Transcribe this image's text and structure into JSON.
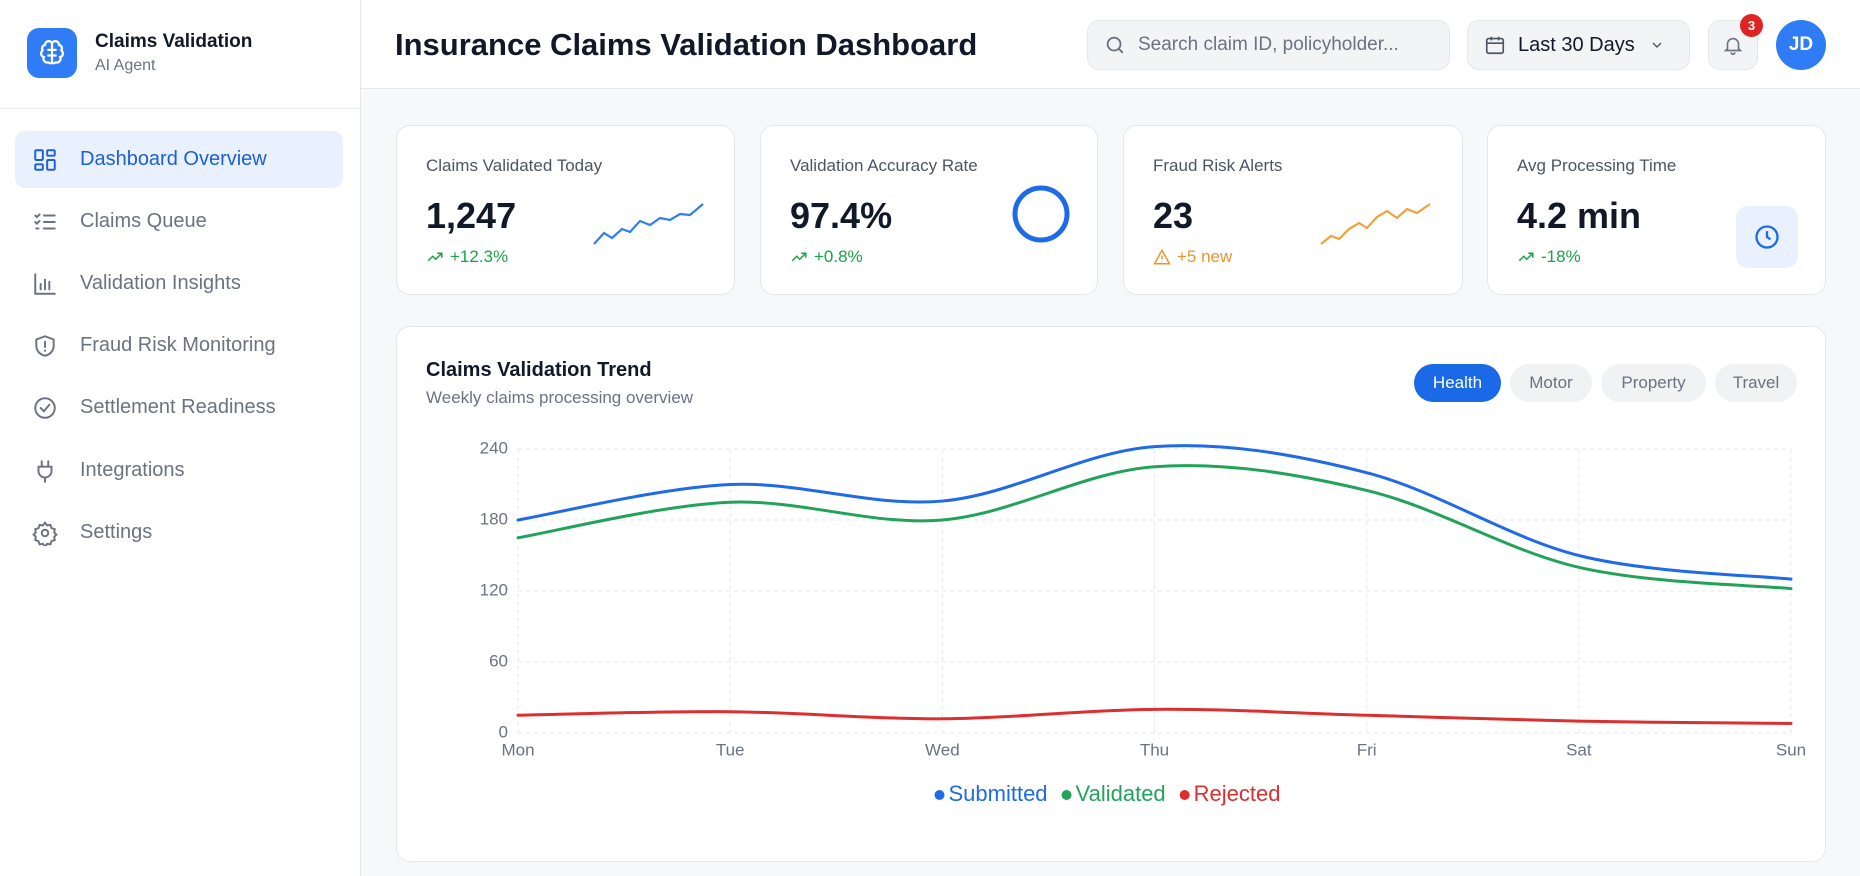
{
  "sidebar": {
    "brand": {
      "title": "Claims Validation",
      "subtitle": "AI Agent"
    },
    "nav": [
      "Dashboard Overview",
      "Claims Queue",
      "Validation Insights",
      "Fraud Risk Monitoring",
      "Settlement Readiness",
      "Integrations",
      "Settings"
    ]
  },
  "header": {
    "title": "Insurance Claims Validation Dashboard",
    "search_placeholder": "Search claim ID, policyholder...",
    "date_range": "Last 30 Days",
    "notifications": 3,
    "avatar": "JD"
  },
  "kpis": [
    {
      "label": "Claims Validated Today",
      "value": "1,247",
      "delta": "+12.3%"
    },
    {
      "label": "Validation Accuracy Rate",
      "value": "97.4%",
      "delta": "+0.8%"
    },
    {
      "label": "Fraud Risk Alerts",
      "value": "23",
      "delta": "+5 new"
    },
    {
      "label": "Avg Processing Time",
      "value": "4.2 min",
      "delta": "-18%"
    }
  ],
  "chart_tabs": [
    "Health",
    "Motor",
    "Property",
    "Travel"
  ],
  "chart_data": {
    "type": "line",
    "title": "Claims Validation Trend",
    "subtitle": "Weekly claims processing overview",
    "categories": [
      "Mon",
      "Tue",
      "Wed",
      "Thu",
      "Fri",
      "Sat",
      "Sun"
    ],
    "series": [
      {
        "name": "Submitted",
        "color": "#1f6ae8",
        "values": [
          180,
          210,
          196,
          242,
          220,
          150,
          130
        ]
      },
      {
        "name": "Validated",
        "color": "#22a35a",
        "values": [
          165,
          195,
          180,
          225,
          205,
          140,
          122
        ]
      },
      {
        "name": "Rejected",
        "color": "#dc2f2f",
        "values": [
          15,
          18,
          12,
          20,
          15,
          10,
          8
        ]
      }
    ],
    "ylim": [
      0,
      240
    ],
    "yticks": [
      0,
      60,
      120,
      180,
      240
    ],
    "grid": true,
    "smooth": true
  }
}
